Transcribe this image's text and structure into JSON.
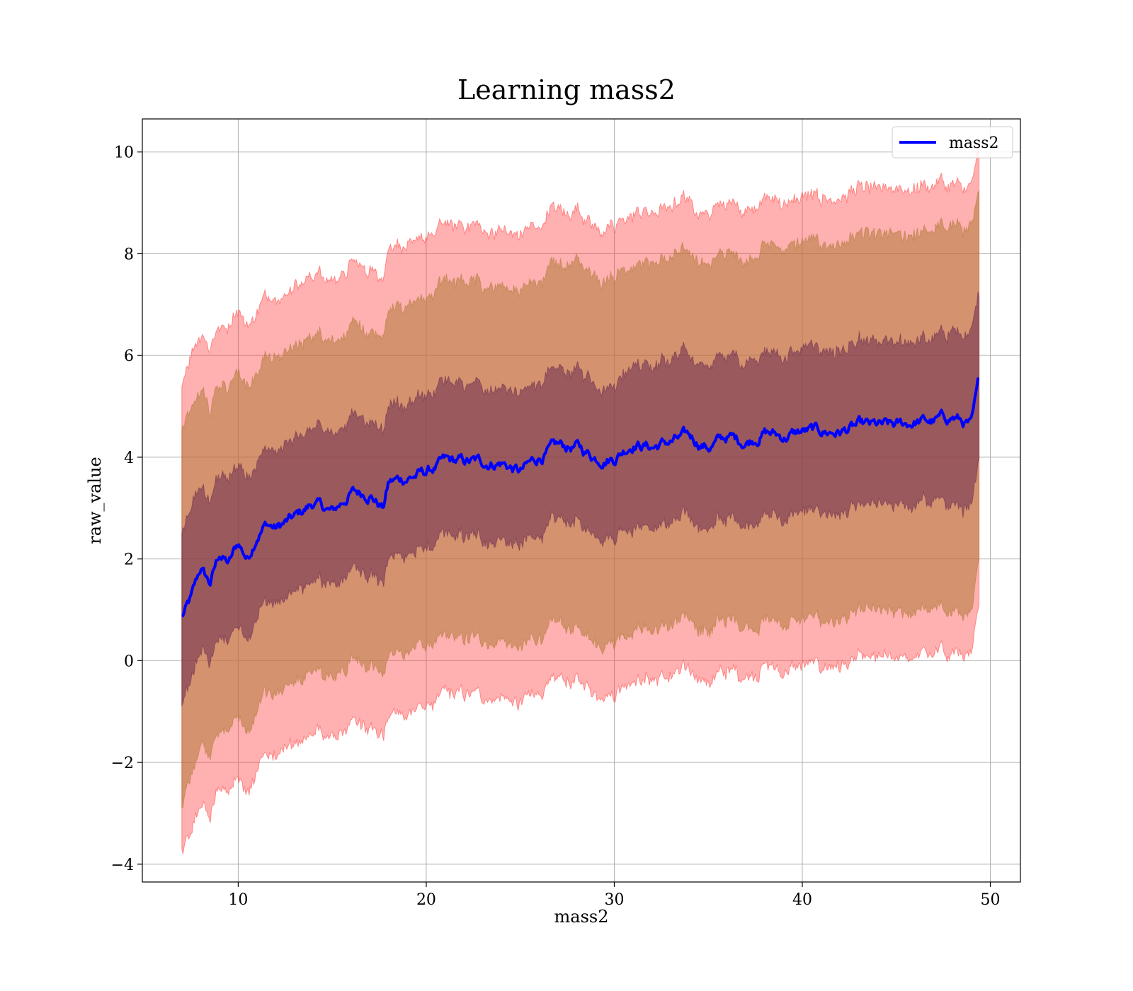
{
  "chart_data": {
    "type": "line",
    "title": "Learning mass2",
    "xlabel": "mass2",
    "ylabel": "raw_value",
    "xlim": [
      4.9,
      51.6
    ],
    "ylim": [
      -4.35,
      10.65
    ],
    "x_ticks": [
      10,
      20,
      30,
      40,
      50
    ],
    "x_tick_labels": [
      "10",
      "20",
      "30",
      "40",
      "50"
    ],
    "y_ticks": [
      -4,
      -2,
      0,
      2,
      4,
      6,
      8,
      10
    ],
    "y_tick_labels": [
      "−4",
      "−2",
      "0",
      "2",
      "4",
      "6",
      "8",
      "10"
    ],
    "grid": true,
    "legend": {
      "position": "top-right",
      "entries": [
        {
          "label": "mass2",
          "color": "#0000ff"
        }
      ]
    },
    "series": [
      {
        "name": "mass2",
        "color": "#0000ff",
        "x": [
          7.0,
          7.5,
          8.0,
          8.5,
          9.0,
          9.5,
          10.0,
          10.5,
          11.0,
          11.5,
          12.0,
          12.5,
          13.0,
          14.0,
          15.0,
          16.0,
          17.0,
          17.7,
          18.0,
          19.0,
          20.0,
          21.0,
          22.0,
          23.0,
          24.0,
          25.0,
          26.0,
          27.0,
          28.0,
          29.0,
          30.0,
          31.0,
          32.0,
          33.0,
          34.0,
          35.0,
          36.0,
          37.0,
          38.0,
          39.0,
          40.0,
          41.0,
          42.0,
          43.0,
          44.0,
          45.0,
          46.0,
          47.0,
          48.0,
          48.5,
          49.0,
          49.4
        ],
        "y": [
          0.85,
          1.2,
          1.8,
          1.5,
          2.1,
          1.9,
          2.3,
          2.0,
          2.5,
          2.7,
          2.6,
          2.7,
          2.8,
          3.1,
          2.9,
          3.3,
          3.3,
          3.0,
          3.5,
          3.6,
          3.7,
          3.9,
          3.9,
          3.9,
          3.9,
          3.7,
          4.0,
          4.2,
          4.2,
          4.0,
          4.0,
          4.3,
          4.2,
          4.3,
          4.4,
          4.2,
          4.4,
          4.3,
          4.5,
          4.4,
          4.5,
          4.5,
          4.5,
          4.6,
          4.6,
          4.6,
          4.7,
          4.7,
          4.8,
          4.7,
          4.6,
          5.45
        ],
        "bands": [
          {
            "sigma": 1,
            "color": "#6a2a50",
            "opacity": 0.55,
            "half_width": [
              1.7,
              1.7,
              1.6,
              1.6,
              1.6,
              1.6,
              1.6,
              1.6,
              1.5,
              1.5,
              1.5,
              1.5,
              1.5,
              1.5,
              1.5,
              1.5,
              1.5,
              1.5,
              1.5,
              1.5,
              1.5,
              1.5,
              1.5,
              1.5,
              1.5,
              1.5,
              1.5,
              1.5,
              1.5,
              1.5,
              1.5,
              1.6,
              1.6,
              1.6,
              1.6,
              1.6,
              1.6,
              1.6,
              1.6,
              1.6,
              1.6,
              1.6,
              1.6,
              1.6,
              1.6,
              1.6,
              1.6,
              1.6,
              1.7,
              1.7,
              1.7,
              1.65
            ]
          },
          {
            "sigma": 2,
            "color": "#b07a38",
            "opacity": 0.55,
            "half_width": [
              3.7,
              3.6,
              3.5,
              3.4,
              3.4,
              3.4,
              3.4,
              3.4,
              3.3,
              3.3,
              3.3,
              3.3,
              3.3,
              3.3,
              3.3,
              3.3,
              3.3,
              3.3,
              3.4,
              3.4,
              3.4,
              3.5,
              3.5,
              3.5,
              3.5,
              3.5,
              3.5,
              3.5,
              3.6,
              3.6,
              3.6,
              3.6,
              3.6,
              3.6,
              3.6,
              3.6,
              3.6,
              3.6,
              3.7,
              3.7,
              3.7,
              3.7,
              3.7,
              3.7,
              3.7,
              3.7,
              3.7,
              3.7,
              3.8,
              3.8,
              3.8,
              3.6
            ]
          },
          {
            "sigma": 3,
            "color": "#ff3a3a",
            "opacity": 0.4,
            "half_width": [
              4.6,
              4.7,
              4.6,
              4.6,
              4.5,
              4.6,
              4.6,
              4.6,
              4.5,
              4.5,
              4.5,
              4.4,
              4.5,
              4.5,
              4.5,
              4.5,
              4.5,
              4.5,
              4.6,
              4.6,
              4.6,
              4.6,
              4.6,
              4.6,
              4.6,
              4.6,
              4.6,
              4.6,
              4.6,
              4.6,
              4.6,
              4.6,
              4.6,
              4.6,
              4.6,
              4.6,
              4.6,
              4.6,
              4.6,
              4.6,
              4.6,
              4.6,
              4.6,
              4.6,
              4.6,
              4.6,
              4.6,
              4.6,
              4.6,
              4.6,
              4.6,
              4.5
            ]
          }
        ]
      }
    ]
  }
}
